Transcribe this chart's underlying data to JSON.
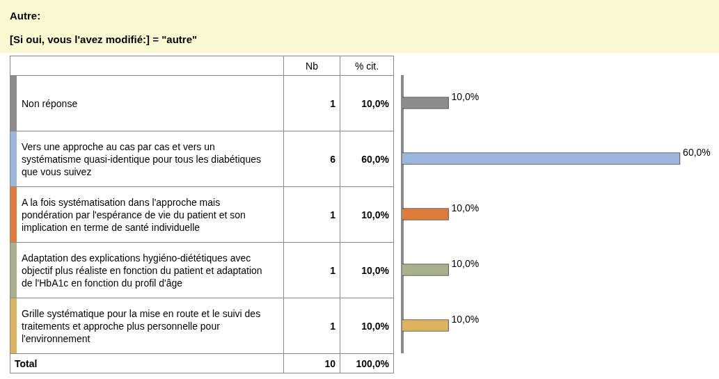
{
  "chart_data": {
    "type": "bar",
    "orientation": "horizontal",
    "title": "Autre:",
    "subtitle": "[Si oui, vous l'avez modifié:] = \"autre\"",
    "categories": [
      "Non réponse",
      "Vers une approche au cas par cas et vers un systématisme quasi-identique pour tous les diabétiques que vous suivez",
      "A la fois systématisation dans l'approche mais pondération par l'espérance de vie du patient et son implication en terme de santé individuelle",
      "Adaptation des explications hygiéno-diététiques avec objectif plus réaliste en fonction du patient et adaptation de l'HbA1c en fonction du profil d'âge",
      "Grille systématique pour la mise en route et le suivi des traitements et approche plus personnelle pour l'environnement"
    ],
    "values": [
      10,
      60,
      10,
      10,
      10
    ],
    "colors": [
      "#8c8c8c",
      "#9bb7db",
      "#e07b3a",
      "#a9b08c",
      "#dcb45e"
    ],
    "value_labels": [
      "10,0%",
      "60,0%",
      "10,0%",
      "10,0%",
      "10,0%"
    ],
    "annotations": [
      "Nb",
      "% cit.",
      "1",
      "6",
      "1",
      "1",
      "1",
      "Total",
      "10",
      "100,0%"
    ],
    "legend": false
  }
}
